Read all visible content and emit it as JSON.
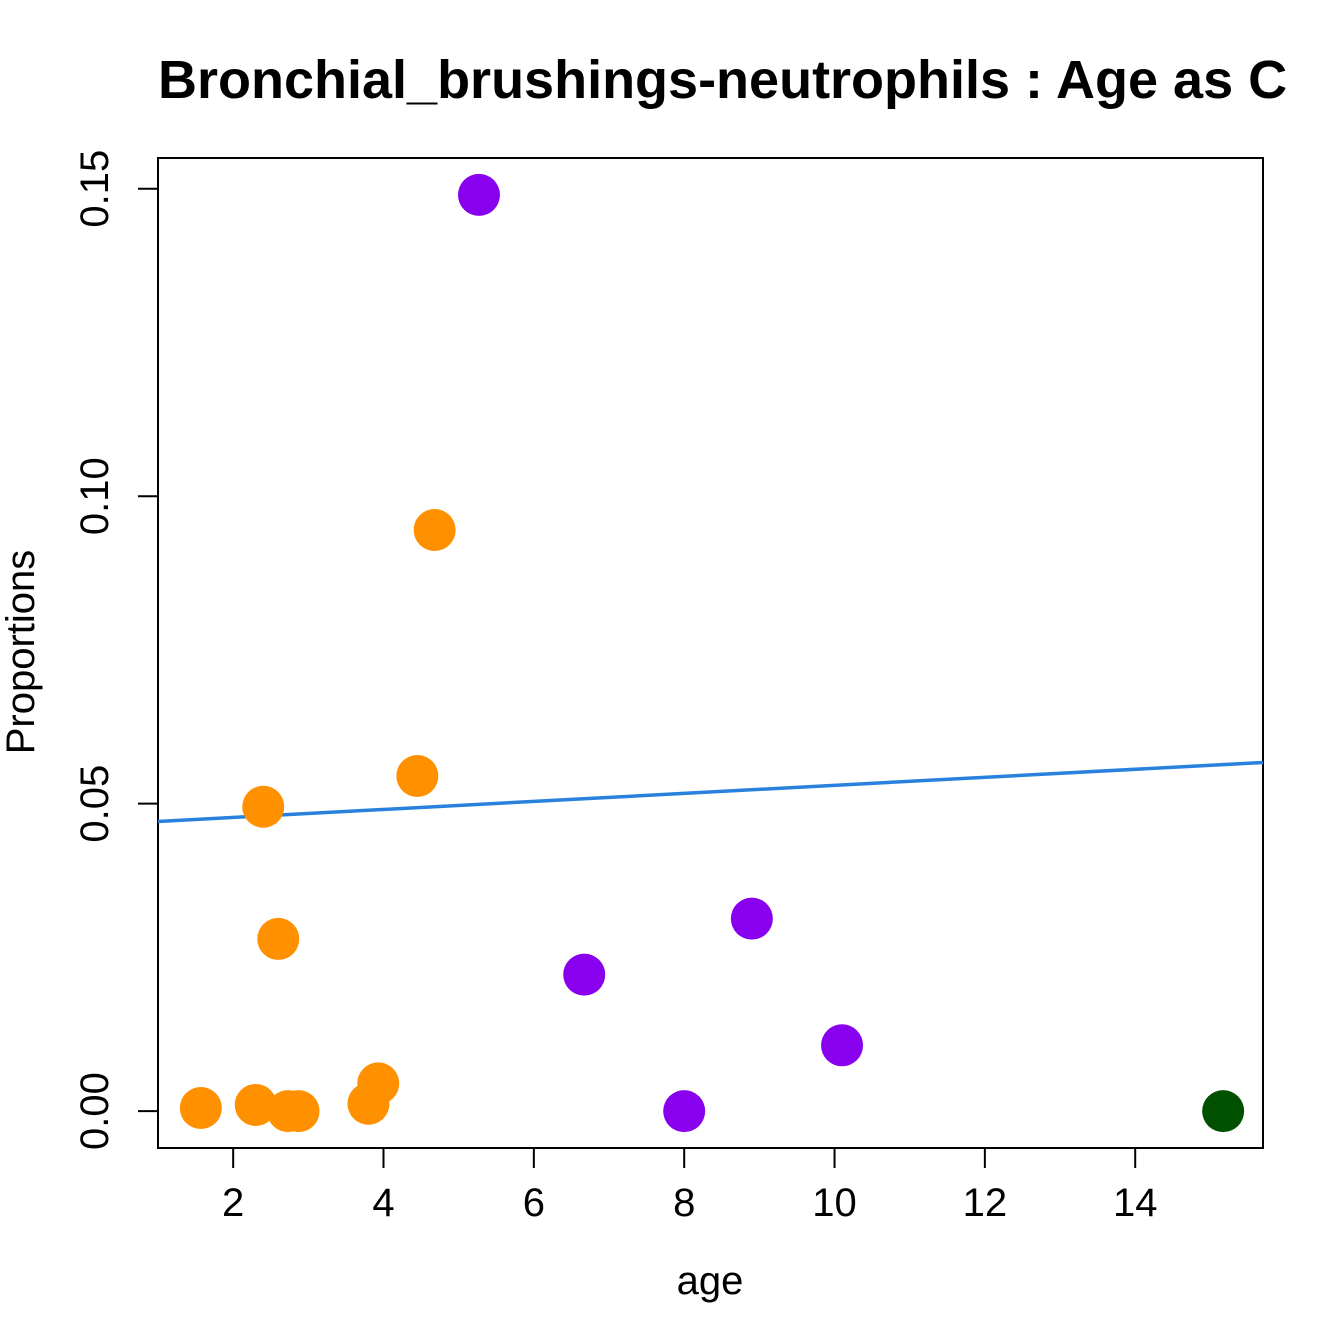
{
  "chart_data": {
    "type": "scatter",
    "title": "Bronchial_brushings-neutrophils : Age as C",
    "xlabel": "age",
    "ylabel": "Proportions",
    "xlim": [
      1.0,
      15.7
    ],
    "ylim": [
      -0.006,
      0.155
    ],
    "xticks": [
      2,
      4,
      6,
      8,
      10,
      12,
      14
    ],
    "xtick_labels": [
      "2",
      "4",
      "6",
      "8",
      "10",
      "12",
      "14"
    ],
    "yticks": [
      0.0,
      0.05,
      0.1,
      0.15
    ],
    "ytick_labels": [
      "0.00",
      "0.05",
      "0.10",
      "0.15"
    ],
    "grid": false,
    "series": [
      {
        "color": "#ff9000",
        "x": [
          1.57,
          2.3,
          2.4,
          2.6,
          2.73,
          2.87,
          3.8,
          3.93,
          4.45,
          4.68
        ],
        "y": [
          0.0005,
          0.001,
          0.0495,
          0.028,
          0.0,
          0.0,
          0.0012,
          0.0045,
          0.0545,
          0.0945
        ]
      },
      {
        "color": "#8800ee",
        "x": [
          5.27,
          6.67,
          8.0,
          8.9,
          10.1
        ],
        "y": [
          0.149,
          0.0222,
          0.0,
          0.0313,
          0.0107
        ]
      },
      {
        "color": "#005000",
        "x": [
          15.17
        ],
        "y": [
          0.0
        ]
      }
    ],
    "trend_line": {
      "color": "#2882dd",
      "x": [
        1.0,
        15.7
      ],
      "y": [
        0.0471,
        0.0567
      ]
    }
  }
}
